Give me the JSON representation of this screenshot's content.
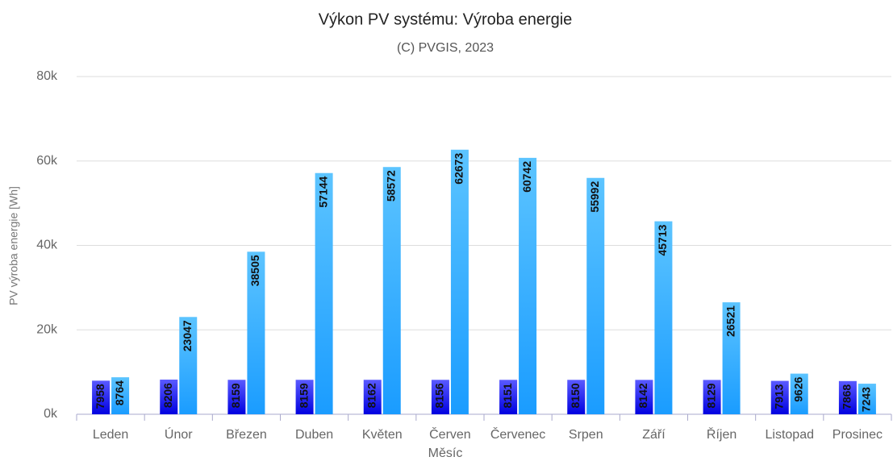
{
  "chart_data": {
    "type": "bar",
    "title": "Výkon PV systému: Výroba energie",
    "subtitle": "(C) PVGIS, 2023",
    "x_label": "Měsíc",
    "y_label": "PV výroba energie  [Wh]",
    "categories": [
      "Leden",
      "Únor",
      "Březen",
      "Duben",
      "Květen",
      "Červen",
      "Červenec",
      "Srpen",
      "Září",
      "Říjen",
      "Listopad",
      "Prosinec"
    ],
    "series": [
      {
        "color": "#1a1aff",
        "values": [
          7958,
          8206,
          8159,
          8159,
          8162,
          8156,
          8151,
          8150,
          8142,
          8129,
          7913,
          7868
        ]
      },
      {
        "color": "#2ba6ff",
        "values": [
          8764,
          23047,
          38505,
          57144,
          58572,
          62673,
          60742,
          55992,
          45713,
          26521,
          9626,
          7243
        ]
      }
    ],
    "ylim": [
      0,
      80000
    ],
    "yticks": [
      {
        "value": 0,
        "label": "0k"
      },
      {
        "value": 20000,
        "label": "20k"
      },
      {
        "value": 40000,
        "label": "40k"
      },
      {
        "value": 60000,
        "label": "60k"
      },
      {
        "value": 80000,
        "label": "80k"
      }
    ],
    "grid": true
  }
}
